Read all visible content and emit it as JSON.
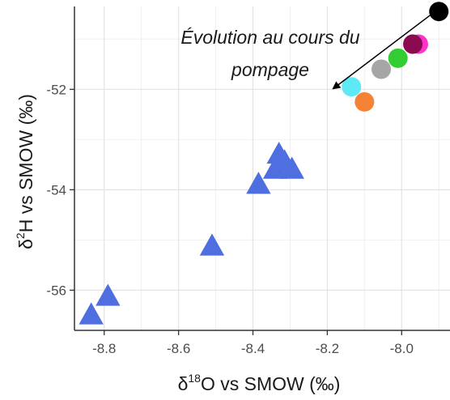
{
  "chart_data": {
    "type": "scatter",
    "title": "",
    "xlabel": {
      "prefix": "δ",
      "sup": "18",
      "suffix": "O vs SMOW (‰)"
    },
    "ylabel": {
      "prefix": "δ",
      "sup": "2",
      "suffix": "H vs SMOW (‰)"
    },
    "xlim": [
      -8.88,
      -7.87
    ],
    "ylim": [
      -56.8,
      -50.35
    ],
    "xticks": [
      -8.8,
      -8.6,
      -8.4,
      -8.2,
      -8.0
    ],
    "xtick_labels": [
      "-8.8",
      "-8.6",
      "-8.4",
      "-8.2",
      "-8.0"
    ],
    "yticks": [
      -52,
      -54,
      -56
    ],
    "ytick_labels": [
      "-52",
      "-54",
      "-56"
    ],
    "grid": true,
    "annotation": {
      "lines": [
        "Évolution au cours du",
        "pompage"
      ],
      "arrow_from": [
        -7.91,
        -50.45
      ],
      "arrow_to": [
        -8.14,
        -51.95
      ]
    },
    "series": [
      {
        "marker": "triangle",
        "color": "#4f6fe0",
        "points": [
          {
            "x": -8.835,
            "y": -56.5
          },
          {
            "x": -8.79,
            "y": -56.13
          },
          {
            "x": -8.51,
            "y": -55.13
          },
          {
            "x": -8.385,
            "y": -53.9
          },
          {
            "x": -8.34,
            "y": -53.6
          },
          {
            "x": -8.33,
            "y": -53.3
          },
          {
            "x": -8.315,
            "y": -53.45
          },
          {
            "x": -8.295,
            "y": -53.6
          }
        ]
      },
      {
        "marker": "circle",
        "points": [
          {
            "x": -7.9,
            "y": -50.45,
            "color": "#000000"
          },
          {
            "x": -7.955,
            "y": -51.1,
            "color": "#ff33cc"
          },
          {
            "x": -7.97,
            "y": -51.1,
            "color": "#8b0a50"
          },
          {
            "x": -8.01,
            "y": -51.38,
            "color": "#33cc33"
          },
          {
            "x": -8.055,
            "y": -51.6,
            "color": "#a6a6a6"
          },
          {
            "x": -8.135,
            "y": -51.95,
            "color": "#5fe8f5"
          },
          {
            "x": -8.1,
            "y": -52.25,
            "color": "#f58235"
          }
        ]
      }
    ]
  }
}
